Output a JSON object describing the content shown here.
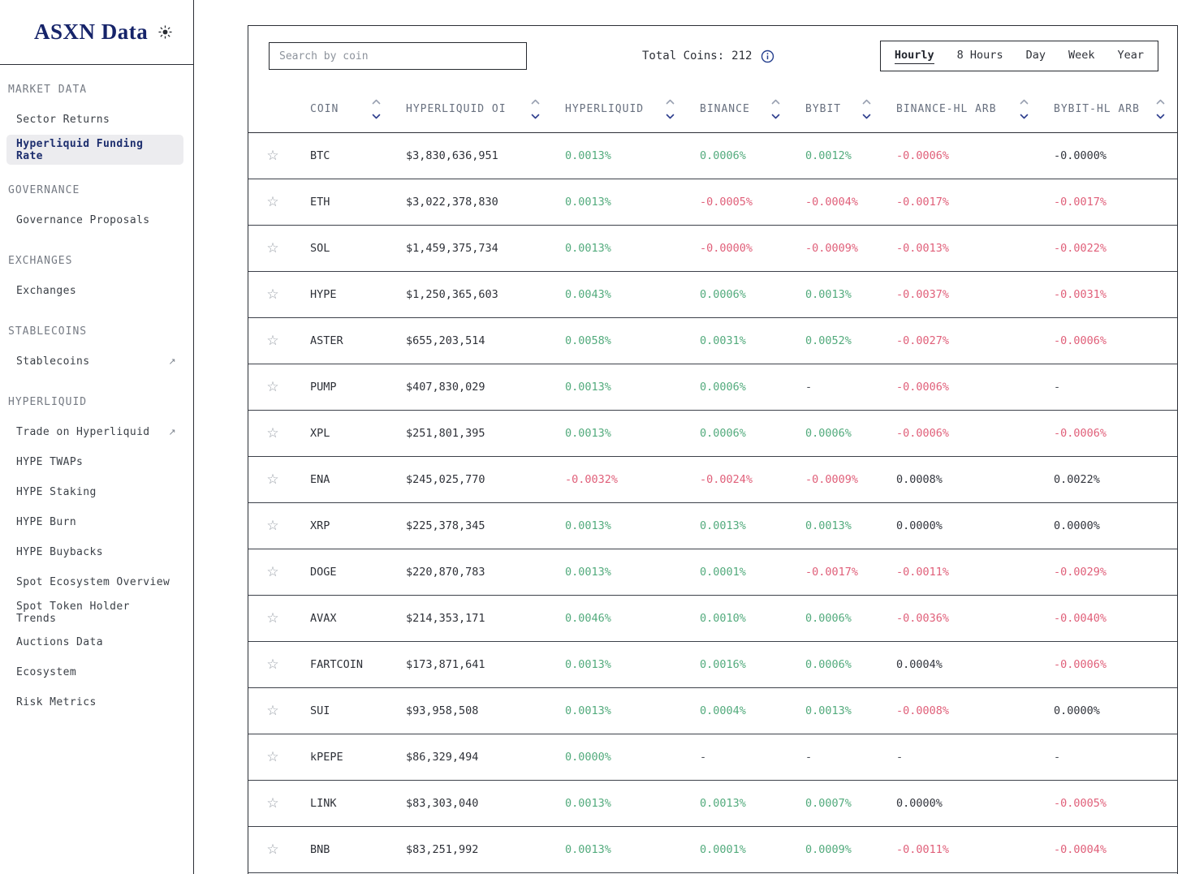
{
  "app": {
    "logo_text": "ASXN Data"
  },
  "colors": {
    "positive": "#53ab7d",
    "negative": "#e0607a",
    "neutral": "#33363e",
    "accent_navy": "#1d2e6e"
  },
  "sidebar": {
    "sections": [
      {
        "title": "MARKET DATA",
        "items": [
          {
            "label": "Sector Returns"
          },
          {
            "label": "Hyperliquid Funding Rate",
            "active": true
          }
        ]
      },
      {
        "title": "GOVERNANCE",
        "items": [
          {
            "label": "Governance Proposals"
          }
        ]
      },
      {
        "title": "EXCHANGES",
        "items": [
          {
            "label": "Exchanges"
          }
        ]
      },
      {
        "title": "STABLECOINS",
        "items": [
          {
            "label": "Stablecoins",
            "external": true
          }
        ]
      },
      {
        "title": "HYPERLIQUID",
        "items": [
          {
            "label": "Trade on Hyperliquid",
            "external": true
          },
          {
            "label": "HYPE TWAPs"
          },
          {
            "label": "HYPE Staking"
          },
          {
            "label": "HYPE Burn"
          },
          {
            "label": "HYPE Buybacks"
          },
          {
            "label": "Spot Ecosystem Overview"
          },
          {
            "label": "Spot Token Holder Trends"
          },
          {
            "label": "Auctions Data"
          },
          {
            "label": "Ecosystem"
          },
          {
            "label": "Risk Metrics"
          }
        ]
      }
    ]
  },
  "toolbar": {
    "search_placeholder": "Search by coin",
    "total_coins_label": "Total Coins:",
    "total_coins_value": "212",
    "periods": [
      "Hourly",
      "8 Hours",
      "Day",
      "Week",
      "Year"
    ],
    "active_period": "Hourly"
  },
  "table": {
    "columns": [
      "COIN",
      "HYPERLIQUID OI",
      "HYPERLIQUID",
      "BINANCE",
      "BYBIT",
      "BINANCE-HL ARB",
      "BYBIT-HL ARB"
    ],
    "rows": [
      {
        "coin": "BTC",
        "oi": "$3,830,636,951",
        "hl": {
          "v": "0.0013%",
          "t": "pos"
        },
        "binance": {
          "v": "0.0006%",
          "t": "pos"
        },
        "bybit": {
          "v": "0.0012%",
          "t": "pos"
        },
        "binance_arb": {
          "v": "-0.0006%",
          "t": "neg"
        },
        "bybit_arb": {
          "v": "-0.0000%",
          "t": "neut"
        }
      },
      {
        "coin": "ETH",
        "oi": "$3,022,378,830",
        "hl": {
          "v": "0.0013%",
          "t": "pos"
        },
        "binance": {
          "v": "-0.0005%",
          "t": "neg"
        },
        "bybit": {
          "v": "-0.0004%",
          "t": "neg"
        },
        "binance_arb": {
          "v": "-0.0017%",
          "t": "neg"
        },
        "bybit_arb": {
          "v": "-0.0017%",
          "t": "neg"
        }
      },
      {
        "coin": "SOL",
        "oi": "$1,459,375,734",
        "hl": {
          "v": "0.0013%",
          "t": "pos"
        },
        "binance": {
          "v": "-0.0000%",
          "t": "neg"
        },
        "bybit": {
          "v": "-0.0009%",
          "t": "neg"
        },
        "binance_arb": {
          "v": "-0.0013%",
          "t": "neg"
        },
        "bybit_arb": {
          "v": "-0.0022%",
          "t": "neg"
        }
      },
      {
        "coin": "HYPE",
        "oi": "$1,250,365,603",
        "hl": {
          "v": "0.0043%",
          "t": "pos"
        },
        "binance": {
          "v": "0.0006%",
          "t": "pos"
        },
        "bybit": {
          "v": "0.0013%",
          "t": "pos"
        },
        "binance_arb": {
          "v": "-0.0037%",
          "t": "neg"
        },
        "bybit_arb": {
          "v": "-0.0031%",
          "t": "neg"
        }
      },
      {
        "coin": "ASTER",
        "oi": "$655,203,514",
        "hl": {
          "v": "0.0058%",
          "t": "pos"
        },
        "binance": {
          "v": "0.0031%",
          "t": "pos"
        },
        "bybit": {
          "v": "0.0052%",
          "t": "pos"
        },
        "binance_arb": {
          "v": "-0.0027%",
          "t": "neg"
        },
        "bybit_arb": {
          "v": "-0.0006%",
          "t": "neg"
        }
      },
      {
        "coin": "PUMP",
        "oi": "$407,830,029",
        "hl": {
          "v": "0.0013%",
          "t": "pos"
        },
        "binance": {
          "v": "0.0006%",
          "t": "pos"
        },
        "bybit": {
          "v": "-",
          "t": "dash"
        },
        "binance_arb": {
          "v": "-0.0006%",
          "t": "neg"
        },
        "bybit_arb": {
          "v": "-",
          "t": "dash"
        }
      },
      {
        "coin": "XPL",
        "oi": "$251,801,395",
        "hl": {
          "v": "0.0013%",
          "t": "pos"
        },
        "binance": {
          "v": "0.0006%",
          "t": "pos"
        },
        "bybit": {
          "v": "0.0006%",
          "t": "pos"
        },
        "binance_arb": {
          "v": "-0.0006%",
          "t": "neg"
        },
        "bybit_arb": {
          "v": "-0.0006%",
          "t": "neg"
        }
      },
      {
        "coin": "ENA",
        "oi": "$245,025,770",
        "hl": {
          "v": "-0.0032%",
          "t": "neg"
        },
        "binance": {
          "v": "-0.0024%",
          "t": "neg"
        },
        "bybit": {
          "v": "-0.0009%",
          "t": "neg"
        },
        "binance_arb": {
          "v": "0.0008%",
          "t": "neut"
        },
        "bybit_arb": {
          "v": "0.0022%",
          "t": "neut"
        }
      },
      {
        "coin": "XRP",
        "oi": "$225,378,345",
        "hl": {
          "v": "0.0013%",
          "t": "pos"
        },
        "binance": {
          "v": "0.0013%",
          "t": "pos"
        },
        "bybit": {
          "v": "0.0013%",
          "t": "pos"
        },
        "binance_arb": {
          "v": "0.0000%",
          "t": "neut"
        },
        "bybit_arb": {
          "v": "0.0000%",
          "t": "neut"
        }
      },
      {
        "coin": "DOGE",
        "oi": "$220,870,783",
        "hl": {
          "v": "0.0013%",
          "t": "pos"
        },
        "binance": {
          "v": "0.0001%",
          "t": "pos"
        },
        "bybit": {
          "v": "-0.0017%",
          "t": "neg"
        },
        "binance_arb": {
          "v": "-0.0011%",
          "t": "neg"
        },
        "bybit_arb": {
          "v": "-0.0029%",
          "t": "neg"
        }
      },
      {
        "coin": "AVAX",
        "oi": "$214,353,171",
        "hl": {
          "v": "0.0046%",
          "t": "pos"
        },
        "binance": {
          "v": "0.0010%",
          "t": "pos"
        },
        "bybit": {
          "v": "0.0006%",
          "t": "pos"
        },
        "binance_arb": {
          "v": "-0.0036%",
          "t": "neg"
        },
        "bybit_arb": {
          "v": "-0.0040%",
          "t": "neg"
        }
      },
      {
        "coin": "FARTCOIN",
        "oi": "$173,871,641",
        "hl": {
          "v": "0.0013%",
          "t": "pos"
        },
        "binance": {
          "v": "0.0016%",
          "t": "pos"
        },
        "bybit": {
          "v": "0.0006%",
          "t": "pos"
        },
        "binance_arb": {
          "v": "0.0004%",
          "t": "neut"
        },
        "bybit_arb": {
          "v": "-0.0006%",
          "t": "neg"
        }
      },
      {
        "coin": "SUI",
        "oi": "$93,958,508",
        "hl": {
          "v": "0.0013%",
          "t": "pos"
        },
        "binance": {
          "v": "0.0004%",
          "t": "pos"
        },
        "bybit": {
          "v": "0.0013%",
          "t": "pos"
        },
        "binance_arb": {
          "v": "-0.0008%",
          "t": "neg"
        },
        "bybit_arb": {
          "v": "0.0000%",
          "t": "neut"
        }
      },
      {
        "coin": "kPEPE",
        "oi": "$86,329,494",
        "hl": {
          "v": "0.0000%",
          "t": "pos"
        },
        "binance": {
          "v": "-",
          "t": "dash"
        },
        "bybit": {
          "v": "-",
          "t": "dash"
        },
        "binance_arb": {
          "v": "-",
          "t": "dash"
        },
        "bybit_arb": {
          "v": "-",
          "t": "dash"
        }
      },
      {
        "coin": "LINK",
        "oi": "$83,303,040",
        "hl": {
          "v": "0.0013%",
          "t": "pos"
        },
        "binance": {
          "v": "0.0013%",
          "t": "pos"
        },
        "bybit": {
          "v": "0.0007%",
          "t": "pos"
        },
        "binance_arb": {
          "v": "0.0000%",
          "t": "neut"
        },
        "bybit_arb": {
          "v": "-0.0005%",
          "t": "neg"
        }
      },
      {
        "coin": "BNB",
        "oi": "$83,251,992",
        "hl": {
          "v": "0.0013%",
          "t": "pos"
        },
        "binance": {
          "v": "0.0001%",
          "t": "pos"
        },
        "bybit": {
          "v": "0.0009%",
          "t": "pos"
        },
        "binance_arb": {
          "v": "-0.0011%",
          "t": "neg"
        },
        "bybit_arb": {
          "v": "-0.0004%",
          "t": "neg"
        }
      }
    ]
  }
}
